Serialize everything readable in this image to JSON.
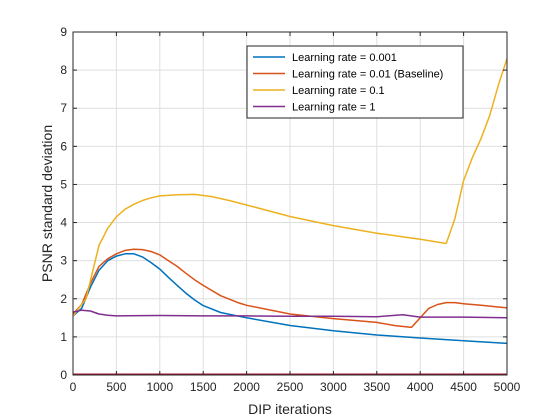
{
  "chart_data": {
    "type": "line",
    "title": "",
    "xlabel": "DIP iterations",
    "ylabel": "PSNR standard deviation",
    "xlim": [
      0,
      5000
    ],
    "ylim": [
      0,
      9
    ],
    "xticks": [
      0,
      500,
      1000,
      1500,
      2000,
      2500,
      3000,
      3500,
      4000,
      4500,
      5000
    ],
    "yticks": [
      0,
      1,
      2,
      3,
      4,
      5,
      6,
      7,
      8,
      9
    ],
    "grid": true,
    "legend_position": "top-right",
    "series": [
      {
        "name": "Learning rate = 0.001",
        "color": "#0072BD",
        "points": [
          [
            0,
            1.55
          ],
          [
            100,
            1.75
          ],
          [
            200,
            2.3
          ],
          [
            300,
            2.75
          ],
          [
            400,
            3.0
          ],
          [
            500,
            3.12
          ],
          [
            600,
            3.18
          ],
          [
            700,
            3.18
          ],
          [
            800,
            3.1
          ],
          [
            900,
            2.95
          ],
          [
            1000,
            2.78
          ],
          [
            1100,
            2.56
          ],
          [
            1200,
            2.35
          ],
          [
            1300,
            2.15
          ],
          [
            1400,
            1.97
          ],
          [
            1500,
            1.82
          ],
          [
            1700,
            1.64
          ],
          [
            2000,
            1.5
          ],
          [
            2500,
            1.3
          ],
          [
            3000,
            1.16
          ],
          [
            3500,
            1.05
          ],
          [
            4000,
            0.97
          ],
          [
            4500,
            0.9
          ],
          [
            5000,
            0.83
          ]
        ]
      },
      {
        "name": "Learning rate = 0.01 (Baseline)",
        "color": "#D95319",
        "points": [
          [
            0,
            1.6
          ],
          [
            100,
            1.85
          ],
          [
            200,
            2.4
          ],
          [
            300,
            2.85
          ],
          [
            400,
            3.05
          ],
          [
            500,
            3.18
          ],
          [
            600,
            3.27
          ],
          [
            700,
            3.3
          ],
          [
            800,
            3.29
          ],
          [
            900,
            3.24
          ],
          [
            1000,
            3.15
          ],
          [
            1100,
            3.0
          ],
          [
            1200,
            2.85
          ],
          [
            1300,
            2.67
          ],
          [
            1400,
            2.5
          ],
          [
            1500,
            2.35
          ],
          [
            1700,
            2.08
          ],
          [
            1900,
            1.9
          ],
          [
            2000,
            1.83
          ],
          [
            2500,
            1.6
          ],
          [
            3000,
            1.48
          ],
          [
            3500,
            1.38
          ],
          [
            3700,
            1.3
          ],
          [
            3900,
            1.25
          ],
          [
            4000,
            1.5
          ],
          [
            4100,
            1.75
          ],
          [
            4200,
            1.85
          ],
          [
            4300,
            1.9
          ],
          [
            4400,
            1.9
          ],
          [
            4500,
            1.87
          ],
          [
            4700,
            1.83
          ],
          [
            5000,
            1.76
          ]
        ]
      },
      {
        "name": "Learning rate = 0.1",
        "color": "#EDB120",
        "points": [
          [
            0,
            1.55
          ],
          [
            150,
            2.0
          ],
          [
            300,
            3.4
          ],
          [
            400,
            3.85
          ],
          [
            500,
            4.15
          ],
          [
            600,
            4.35
          ],
          [
            700,
            4.48
          ],
          [
            800,
            4.58
          ],
          [
            900,
            4.65
          ],
          [
            1000,
            4.7
          ],
          [
            1200,
            4.73
          ],
          [
            1400,
            4.74
          ],
          [
            1600,
            4.68
          ],
          [
            1800,
            4.58
          ],
          [
            2000,
            4.46
          ],
          [
            2500,
            4.16
          ],
          [
            3000,
            3.92
          ],
          [
            3500,
            3.72
          ],
          [
            4000,
            3.56
          ],
          [
            4300,
            3.45
          ],
          [
            4400,
            4.1
          ],
          [
            4500,
            5.1
          ],
          [
            4600,
            5.7
          ],
          [
            4700,
            6.2
          ],
          [
            4800,
            6.8
          ],
          [
            4900,
            7.6
          ],
          [
            5000,
            8.3
          ]
        ]
      },
      {
        "name": "Learning rate = 1",
        "color": "#7E2F8E",
        "points": [
          [
            0,
            1.65
          ],
          [
            100,
            1.7
          ],
          [
            200,
            1.68
          ],
          [
            300,
            1.6
          ],
          [
            400,
            1.57
          ],
          [
            500,
            1.55
          ],
          [
            1000,
            1.56
          ],
          [
            1500,
            1.55
          ],
          [
            2000,
            1.55
          ],
          [
            2500,
            1.54
          ],
          [
            3000,
            1.54
          ],
          [
            3500,
            1.53
          ],
          [
            3800,
            1.58
          ],
          [
            4000,
            1.52
          ],
          [
            4500,
            1.52
          ],
          [
            5000,
            1.5
          ]
        ]
      },
      {
        "name": "",
        "color": "#A2142F",
        "points": [
          [
            0,
            0.02
          ],
          [
            5000,
            0.02
          ]
        ]
      }
    ]
  }
}
